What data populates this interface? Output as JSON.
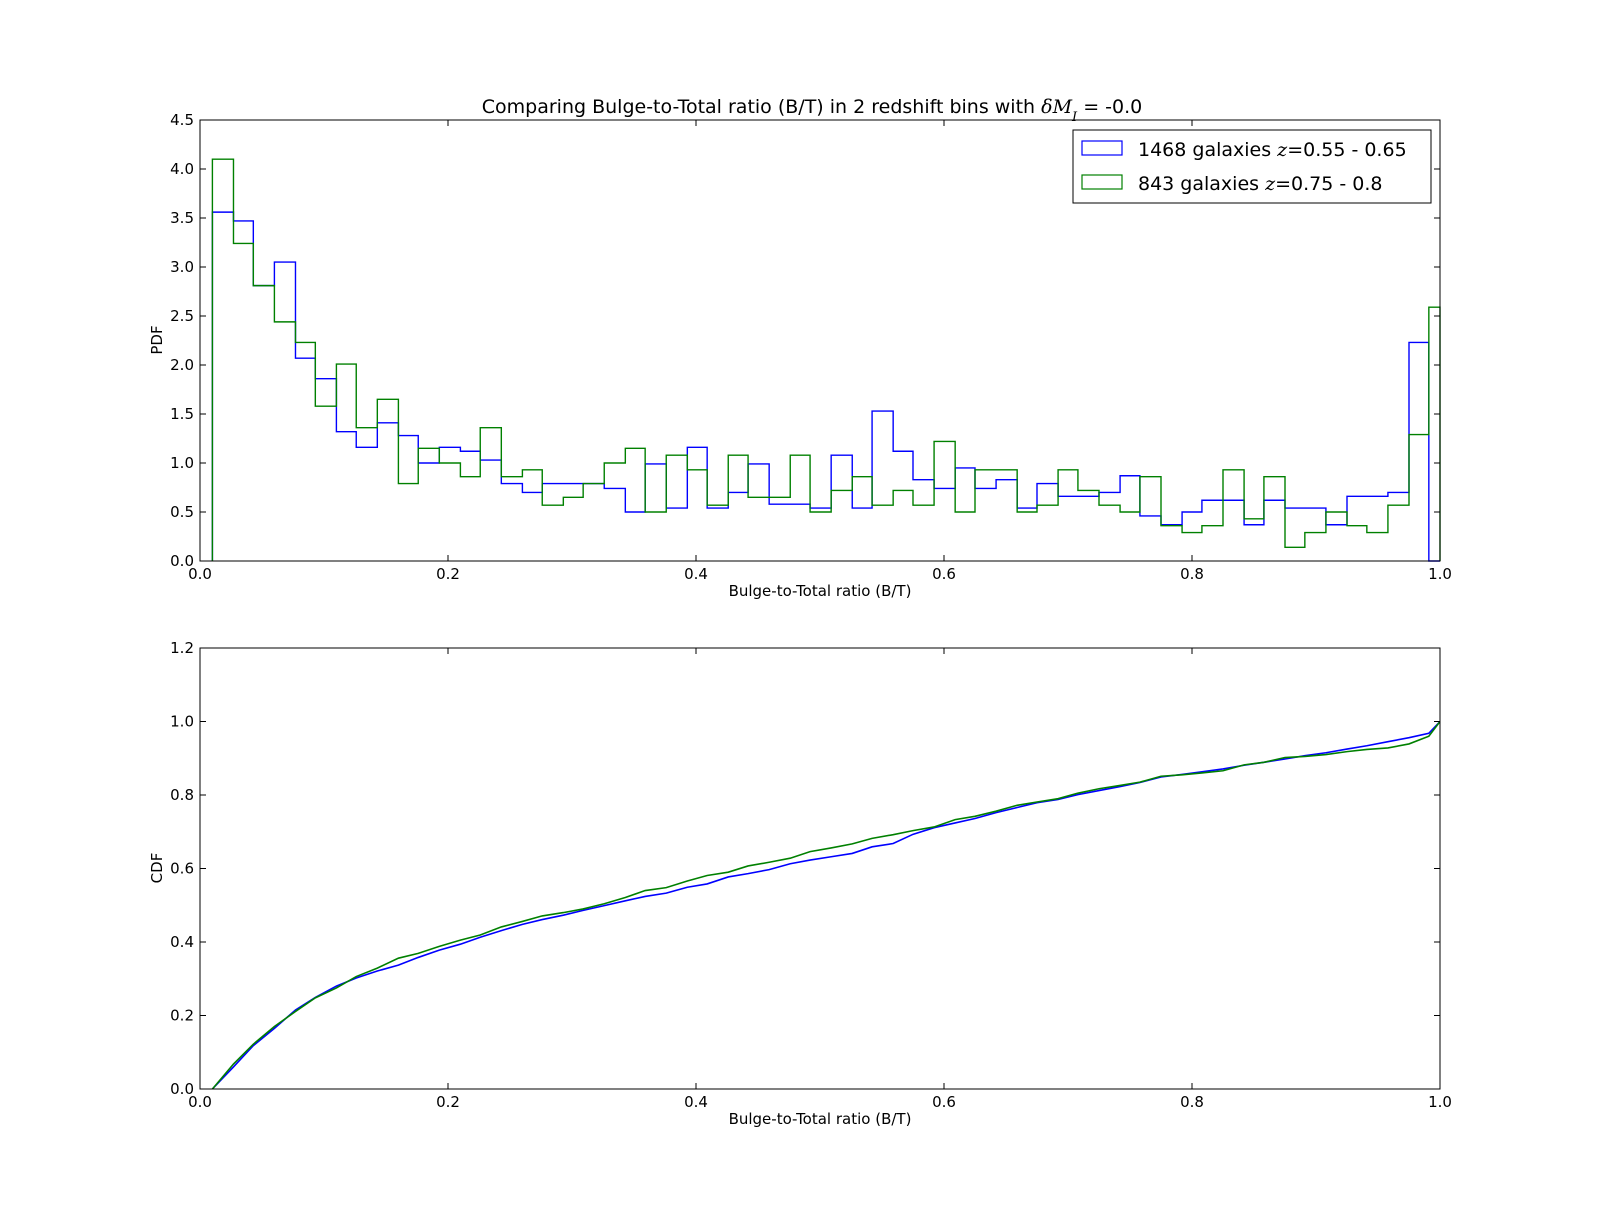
{
  "chart_data": [
    {
      "type": "histogram-step",
      "title_prefix": "Comparing Bulge-to-Total ratio (B/T) in 2 redshift bins with ",
      "title_math": "δM",
      "title_sub": "I",
      "title_suffix": " = -0.0",
      "xlabel": "Bulge-to-Total ratio (B/T)",
      "ylabel": "PDF",
      "xlim": [
        0.0,
        1.0
      ],
      "ylim": [
        0.0,
        4.5
      ],
      "xticks": [
        "0.0",
        "0.2",
        "0.4",
        "0.6",
        "0.8",
        "1.0"
      ],
      "yticks": [
        "0.0",
        "0.5",
        "1.0",
        "1.5",
        "2.0",
        "2.5",
        "3.0",
        "3.5",
        "4.0",
        "4.5"
      ],
      "legend_position": "top-right",
      "bins": [
        0.01,
        0.027,
        0.043,
        0.06,
        0.077,
        0.093,
        0.11,
        0.126,
        0.143,
        0.16,
        0.176,
        0.193,
        0.21,
        0.226,
        0.243,
        0.26,
        0.276,
        0.293,
        0.309,
        0.326,
        0.343,
        0.359,
        0.376,
        0.393,
        0.409,
        0.426,
        0.442,
        0.459,
        0.476,
        0.492,
        0.509,
        0.526,
        0.542,
        0.559,
        0.575,
        0.592,
        0.609,
        0.625,
        0.642,
        0.659,
        0.675,
        0.692,
        0.708,
        0.725,
        0.742,
        0.758,
        0.775,
        0.792,
        0.808,
        0.825,
        0.842,
        0.858,
        0.875,
        0.891,
        0.908,
        0.925,
        0.941,
        0.958,
        0.975,
        0.991,
        1.0
      ],
      "series": [
        {
          "label_prefix": "1468 galaxies ",
          "label_math": "z",
          "label_suffix": "=0.55 - 0.65",
          "color": "#0000ff",
          "values": [
            3.56,
            3.47,
            2.81,
            3.05,
            2.07,
            1.86,
            1.32,
            1.16,
            1.41,
            1.28,
            1.0,
            1.16,
            1.12,
            1.03,
            0.79,
            0.7,
            0.79,
            0.79,
            0.79,
            0.74,
            0.5,
            0.99,
            0.54,
            1.16,
            0.54,
            0.7,
            0.99,
            0.58,
            0.58,
            0.54,
            1.08,
            0.54,
            1.53,
            1.12,
            0.83,
            0.74,
            0.95,
            0.74,
            0.83,
            0.54,
            0.79,
            0.66,
            0.66,
            0.7,
            0.87,
            0.46,
            0.37,
            0.5,
            0.62,
            0.62,
            0.37,
            0.62,
            0.54,
            0.54,
            0.37,
            0.66,
            0.66,
            0.7,
            2.23,
            0.0
          ]
        },
        {
          "label_prefix": "843 galaxies ",
          "label_math": "z",
          "label_suffix": "=0.75 - 0.8",
          "color": "#008000",
          "values": [
            4.1,
            3.24,
            2.81,
            2.44,
            2.23,
            1.58,
            2.01,
            1.36,
            1.65,
            0.79,
            1.15,
            1.0,
            0.86,
            1.36,
            0.86,
            0.93,
            0.57,
            0.65,
            0.79,
            1.0,
            1.15,
            0.5,
            1.08,
            0.93,
            0.57,
            1.08,
            0.65,
            0.65,
            1.08,
            0.5,
            0.72,
            0.86,
            0.57,
            0.72,
            0.57,
            1.22,
            0.5,
            0.93,
            0.93,
            0.5,
            0.57,
            0.93,
            0.72,
            0.57,
            0.5,
            0.86,
            0.36,
            0.29,
            0.36,
            0.93,
            0.43,
            0.86,
            0.14,
            0.29,
            0.5,
            0.36,
            0.29,
            0.57,
            1.29,
            2.59
          ]
        }
      ]
    },
    {
      "type": "line",
      "xlabel": "Bulge-to-Total ratio (B/T)",
      "ylabel": "CDF",
      "xlim": [
        0.0,
        1.0
      ],
      "ylim": [
        0.0,
        1.2
      ],
      "xticks": [
        "0.0",
        "0.2",
        "0.4",
        "0.6",
        "0.8",
        "1.0"
      ],
      "yticks": [
        "0.0",
        "0.2",
        "0.4",
        "0.6",
        "0.8",
        "1.0",
        "1.2"
      ],
      "series": [
        {
          "color": "#0000ff",
          "x": [
            0.01,
            0.027,
            0.043,
            0.06,
            0.077,
            0.093,
            0.11,
            0.126,
            0.143,
            0.16,
            0.176,
            0.193,
            0.21,
            0.226,
            0.243,
            0.26,
            0.276,
            0.293,
            0.309,
            0.326,
            0.343,
            0.359,
            0.376,
            0.393,
            0.409,
            0.426,
            0.442,
            0.459,
            0.476,
            0.492,
            0.509,
            0.526,
            0.542,
            0.559,
            0.575,
            0.592,
            0.609,
            0.625,
            0.642,
            0.659,
            0.675,
            0.692,
            0.708,
            0.725,
            0.742,
            0.758,
            0.775,
            0.792,
            0.808,
            0.825,
            0.842,
            0.858,
            0.875,
            0.891,
            0.908,
            0.925,
            0.941,
            0.958,
            0.975,
            0.991,
            1.0
          ],
          "y": [
            0.0,
            0.06,
            0.118,
            0.165,
            0.215,
            0.249,
            0.28,
            0.302,
            0.321,
            0.337,
            0.358,
            0.378,
            0.394,
            0.413,
            0.431,
            0.448,
            0.461,
            0.473,
            0.486,
            0.499,
            0.512,
            0.524,
            0.533,
            0.549,
            0.558,
            0.577,
            0.586,
            0.597,
            0.613,
            0.623,
            0.632,
            0.641,
            0.659,
            0.668,
            0.693,
            0.711,
            0.724,
            0.736,
            0.752,
            0.766,
            0.779,
            0.788,
            0.801,
            0.812,
            0.823,
            0.834,
            0.849,
            0.856,
            0.863,
            0.871,
            0.881,
            0.889,
            0.898,
            0.907,
            0.915,
            0.925,
            0.934,
            0.945,
            0.956,
            0.968,
            1.0
          ]
        },
        {
          "color": "#008000",
          "x": [
            0.01,
            0.027,
            0.043,
            0.06,
            0.077,
            0.093,
            0.11,
            0.126,
            0.143,
            0.16,
            0.176,
            0.193,
            0.21,
            0.226,
            0.243,
            0.26,
            0.276,
            0.293,
            0.309,
            0.326,
            0.343,
            0.359,
            0.376,
            0.393,
            0.409,
            0.426,
            0.442,
            0.459,
            0.476,
            0.492,
            0.509,
            0.526,
            0.542,
            0.559,
            0.575,
            0.592,
            0.609,
            0.625,
            0.642,
            0.659,
            0.675,
            0.692,
            0.708,
            0.725,
            0.742,
            0.758,
            0.775,
            0.792,
            0.808,
            0.825,
            0.842,
            0.858,
            0.875,
            0.891,
            0.908,
            0.925,
            0.941,
            0.958,
            0.975,
            0.991,
            1.0
          ],
          "y": [
            0.0,
            0.068,
            0.122,
            0.17,
            0.211,
            0.248,
            0.275,
            0.306,
            0.329,
            0.356,
            0.369,
            0.388,
            0.405,
            0.419,
            0.441,
            0.456,
            0.471,
            0.48,
            0.49,
            0.504,
            0.521,
            0.54,
            0.548,
            0.566,
            0.581,
            0.59,
            0.607,
            0.617,
            0.628,
            0.646,
            0.656,
            0.667,
            0.682,
            0.692,
            0.703,
            0.713,
            0.733,
            0.742,
            0.756,
            0.772,
            0.781,
            0.79,
            0.805,
            0.817,
            0.826,
            0.835,
            0.851,
            0.855,
            0.86,
            0.866,
            0.882,
            0.889,
            0.902,
            0.905,
            0.91,
            0.918,
            0.924,
            0.928,
            0.939,
            0.96,
            1.0
          ]
        }
      ]
    }
  ]
}
